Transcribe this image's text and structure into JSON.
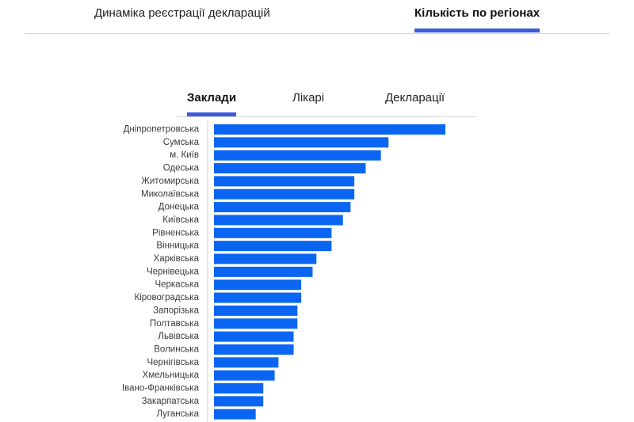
{
  "header": {
    "tabs": [
      {
        "label": "Динаміка реєстрації декларацій",
        "active": false
      },
      {
        "label": "Кількість по регіонах",
        "active": true
      }
    ]
  },
  "sub_tabs": [
    {
      "label": "Заклади",
      "active": true
    },
    {
      "label": "Лікарі",
      "active": false
    },
    {
      "label": "Декларації",
      "active": false
    }
  ],
  "colors": {
    "accent": "#3b5bdb",
    "bar": "#0a66f2",
    "axis": "#cfcfcf"
  },
  "chart_data": {
    "type": "bar",
    "orientation": "horizontal",
    "categories": [
      "Дніпропетровська",
      "Сумська",
      "м. Київ",
      "Одеська",
      "Житомирська",
      "Миколаївська",
      "Донецька",
      "Київська",
      "Рівненська",
      "Вінницька",
      "Харківська",
      "Чернівецька",
      "Черкаська",
      "Кіровоградська",
      "Запорізька",
      "Полтавська",
      "Львівська",
      "Волинська",
      "Чернігівська",
      "Хмельницька",
      "Івано-Франківська",
      "Закарпатська",
      "Луганська"
    ],
    "values": [
      61,
      46,
      44,
      40,
      37,
      37,
      36,
      34,
      31,
      31,
      27,
      26,
      23,
      23,
      22,
      22,
      21,
      21,
      17,
      16,
      13,
      13,
      11
    ],
    "xlim": [
      0,
      61
    ],
    "title": "",
    "xlabel": "",
    "ylabel": "",
    "grid": false,
    "legend": "none"
  }
}
